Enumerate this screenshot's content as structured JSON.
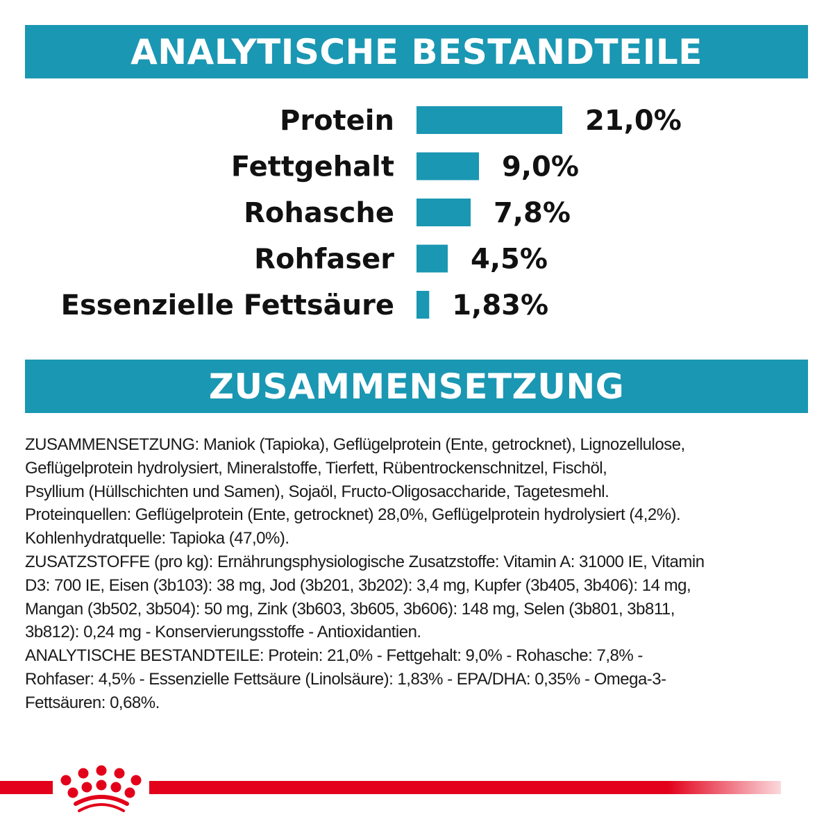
{
  "header1": {
    "title": "ANALYTISCHE BESTANDTEILE"
  },
  "header2": {
    "title": "ZUSAMMENSETZUNG"
  },
  "colors": {
    "banner": "#1a97b2",
    "bar": "#1a97b2",
    "brand_red": "#e2001a"
  },
  "chart_data": {
    "type": "bar",
    "orientation": "horizontal",
    "categories": [
      "Protein",
      "Fettgehalt",
      "Rohasche",
      "Rohfaser",
      "Essenzielle Fettsäure"
    ],
    "values": [
      21.0,
      9.0,
      7.8,
      4.5,
      1.83
    ],
    "value_labels": [
      "21,0%",
      "9,0%",
      "7,8%",
      "4,5%",
      "1,83%"
    ],
    "unit": "%",
    "grid": false
  },
  "composition": {
    "lines": [
      "ZUSAMMENSETZUNG: Maniok (Tapioka), Geflügelprotein (Ente, getrocknet), Lignozellulose,",
      "Geflügelprotein hydrolysiert, Mineralstoffe, Tierfett, Rübentrockenschnitzel, Fischöl,",
      "Psyllium (Hüllschichten und Samen), Sojaöl, Fructo-Oligosaccharide, Tagetesmehl.",
      "Proteinquellen: Geflügelprotein (Ente, getrocknet) 28,0%, Geflügelprotein hydrolysiert (4,2%).",
      "Kohlenhydratquelle: Tapioka (47,0%).",
      "ZUSATZSTOFFE (pro kg): Ernährungsphysiologische Zusatzstoffe: Vitamin A: 31000 IE, Vitamin",
      "D3: 700 IE, Eisen (3b103): 38 mg, Jod (3b201, 3b202): 3,4 mg, Kupfer (3b405, 3b406): 14 mg,",
      "Mangan (3b502, 3b504): 50 mg, Zink (3b603, 3b605, 3b606): 148 mg, Selen (3b801, 3b811,",
      "3b812): 0,24 mg - Konservierungsstoffe - Antioxidantien.",
      "ANALYTISCHE BESTANDTEILE: Protein: 21,0% - Fettgehalt: 9,0% - Rohasche: 7,8% -",
      "Rohfaser: 4,5% - Essenzielle Fettsäure (Linolsäure): 1,83% - EPA/DHA: 0,35% - Omega-3-",
      "Fettsäuren: 0,68%."
    ]
  },
  "footer": {
    "logo": "Royal Canin crown"
  }
}
